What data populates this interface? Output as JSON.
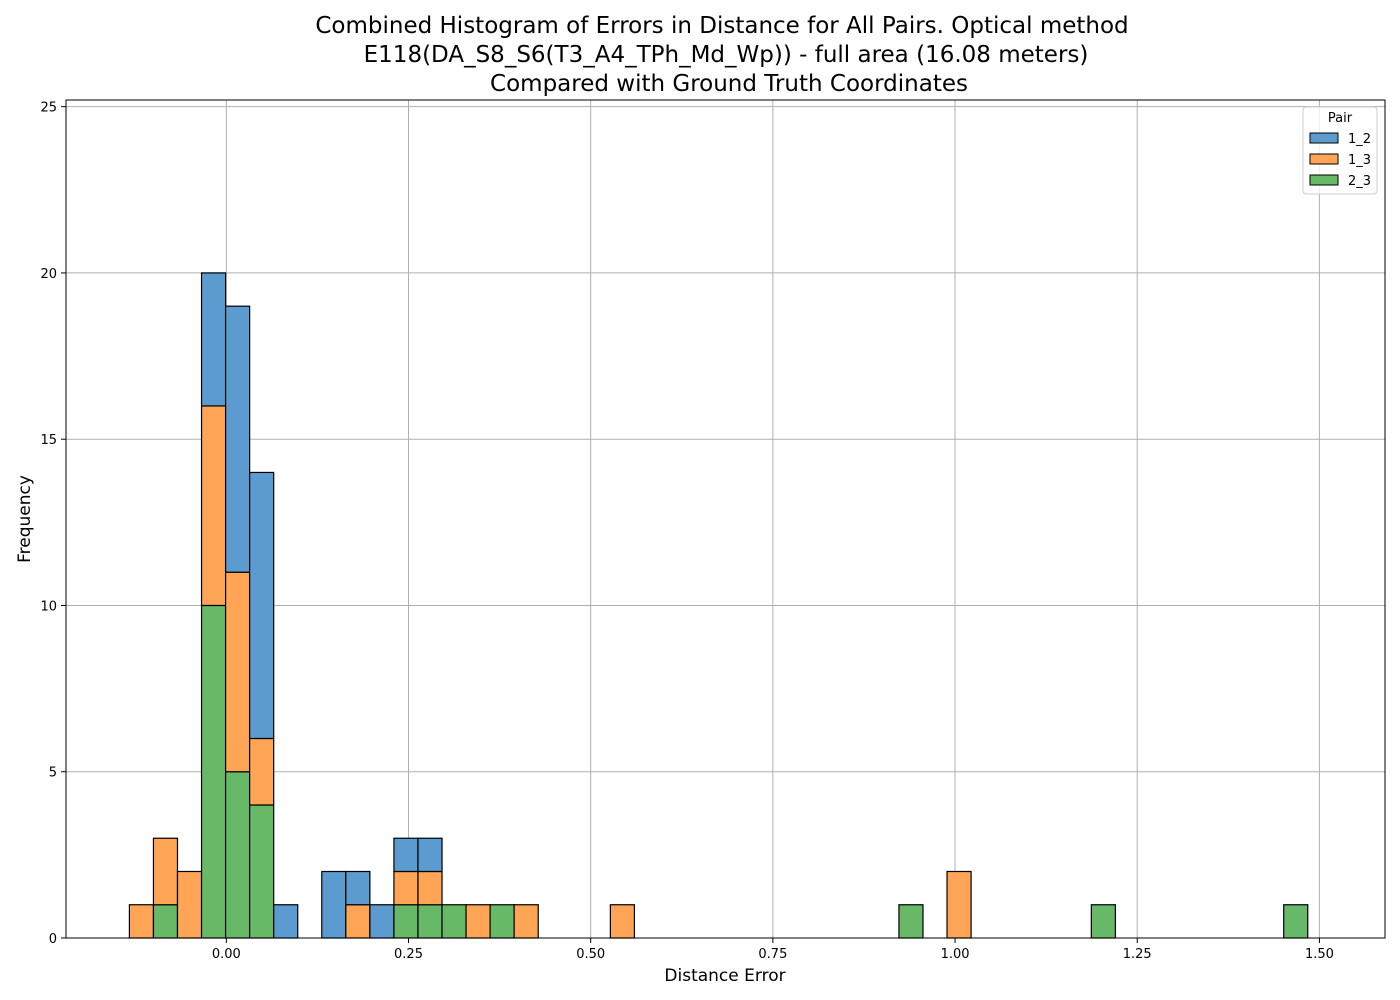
{
  "chart_data": {
    "type": "bar",
    "subtype": "stacked-histogram",
    "title_lines": [
      "Combined Histogram of Errors in Distance for All Pairs. Optical method",
      "E118(DA_S8_S6(T3_A4_TPh_Md_Wp)) - full area (16.08 meters)",
      "Compared with Ground Truth Coordinates"
    ],
    "xlabel": "Distance Error",
    "ylabel": "Frequency",
    "xlim": [
      -0.22,
      1.59
    ],
    "ylim": [
      0,
      25.2
    ],
    "x_ticks": [
      0.0,
      0.25,
      0.5,
      0.75,
      1.0,
      1.25,
      1.5
    ],
    "x_tick_labels": [
      "0.00",
      "0.25",
      "0.50",
      "0.75",
      "1.00",
      "1.25",
      "1.50"
    ],
    "y_ticks": [
      0,
      5,
      10,
      15,
      20,
      25
    ],
    "y_tick_labels": [
      "0",
      "5",
      "10",
      "15",
      "20",
      "25"
    ],
    "grid": true,
    "legend": {
      "title": "Pair",
      "placement": "top-right",
      "entries": [
        "1_2",
        "1_3",
        "2_3"
      ]
    },
    "bin_start": -0.133,
    "bin_width": 0.033,
    "bins": 49,
    "stack_order": [
      "2_3",
      "1_3",
      "1_2"
    ],
    "series": [
      {
        "name": "1_2",
        "color": "#5b9bd0",
        "counts": [
          0,
          0,
          0,
          4,
          8,
          8,
          1,
          0,
          2,
          1,
          1,
          1,
          1,
          0,
          0,
          0,
          0,
          0,
          0,
          0,
          0,
          0,
          0,
          0,
          0,
          0,
          0,
          0,
          0,
          0,
          0,
          0,
          0,
          0,
          0,
          0,
          0,
          0,
          0,
          0,
          0,
          0,
          0,
          0,
          0,
          0,
          0,
          0,
          0
        ]
      },
      {
        "name": "1_3",
        "color": "#ffa555",
        "counts": [
          1,
          2,
          2,
          6,
          6,
          2,
          0,
          0,
          0,
          1,
          0,
          1,
          1,
          0,
          1,
          0,
          1,
          0,
          0,
          0,
          1,
          0,
          0,
          0,
          0,
          0,
          0,
          0,
          0,
          0,
          0,
          0,
          0,
          0,
          2,
          0,
          0,
          0,
          0,
          0,
          0,
          0,
          0,
          0,
          0,
          0,
          0,
          0,
          0
        ]
      },
      {
        "name": "2_3",
        "color": "#67b867",
        "counts": [
          0,
          1,
          0,
          10,
          5,
          4,
          0,
          0,
          0,
          0,
          0,
          1,
          1,
          1,
          0,
          1,
          0,
          0,
          0,
          0,
          0,
          0,
          0,
          0,
          0,
          0,
          0,
          0,
          0,
          0,
          0,
          0,
          1,
          0,
          0,
          0,
          0,
          0,
          0,
          0,
          1,
          0,
          0,
          0,
          0,
          0,
          0,
          0,
          1
        ]
      }
    ]
  }
}
